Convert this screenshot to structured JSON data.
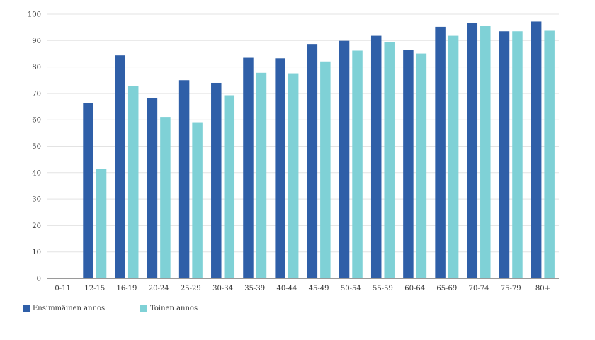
{
  "chart_data": {
    "type": "bar",
    "categories": [
      "0-11",
      "12-15",
      "16-19",
      "20-24",
      "25-29",
      "30-34",
      "35-39",
      "40-44",
      "45-49",
      "50-54",
      "55-59",
      "60-64",
      "65-69",
      "70-74",
      "75-79",
      "80+"
    ],
    "series": [
      {
        "name": "Ensimmäinen annos",
        "color": "#2f5fa8",
        "values": [
          0,
          66.4,
          84.4,
          68.1,
          75.0,
          74.0,
          83.5,
          83.3,
          88.7,
          89.9,
          91.8,
          86.4,
          95.2,
          96.6,
          93.5,
          97.2
        ]
      },
      {
        "name": "Toinen annos",
        "color": "#7fd1d6",
        "values": [
          0,
          41.5,
          72.7,
          61.1,
          59.1,
          69.3,
          77.8,
          77.6,
          82.1,
          86.2,
          89.5,
          85.1,
          91.8,
          95.5,
          93.5,
          93.7
        ]
      }
    ],
    "y_ticks": [
      "0",
      "10",
      "20",
      "30",
      "40",
      "50",
      "60",
      "70",
      "80",
      "90",
      "100"
    ],
    "ylim": [
      0,
      100
    ],
    "grid": true,
    "legend_position": "bottom-left"
  }
}
